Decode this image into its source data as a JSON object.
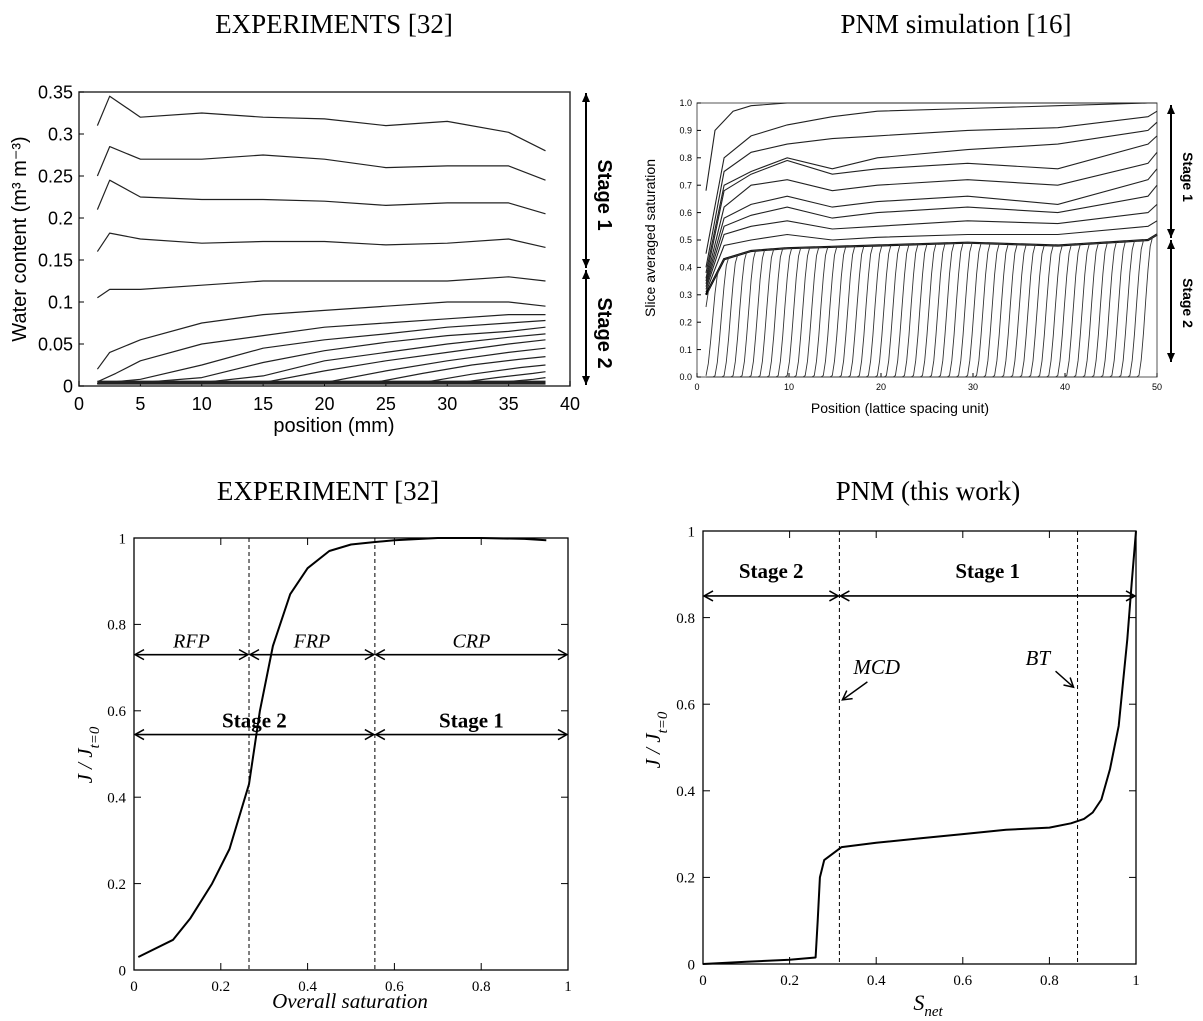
{
  "chart_data": [
    {
      "panel": "top-left",
      "type": "line",
      "title": "EXPERIMENTS [32]",
      "xlabel": "position (mm)",
      "ylabel": "Water content (m³ m⁻³)",
      "xlim": [
        0,
        40
      ],
      "ylim": [
        0,
        0.35
      ],
      "xticks": [
        "0",
        "5",
        "10",
        "15",
        "20",
        "25",
        "30",
        "35",
        "40"
      ],
      "yticks": [
        "0",
        "0.05",
        "0.1",
        "0.15",
        "0.2",
        "0.25",
        "0.3",
        "0.35"
      ],
      "annotations": [
        "Stage 1",
        "Stage 2"
      ],
      "series": [
        {
          "x": [
            1.5,
            2.5,
            5,
            10,
            15,
            20,
            25,
            30,
            35,
            38
          ],
          "values": [
            0.31,
            0.345,
            0.32,
            0.325,
            0.32,
            0.318,
            0.31,
            0.315,
            0.302,
            0.28
          ]
        },
        {
          "x": [
            1.5,
            2.5,
            5,
            10,
            15,
            20,
            25,
            30,
            35,
            38
          ],
          "values": [
            0.25,
            0.285,
            0.27,
            0.27,
            0.275,
            0.27,
            0.26,
            0.262,
            0.262,
            0.245
          ]
        },
        {
          "x": [
            1.5,
            2.5,
            5,
            10,
            15,
            20,
            25,
            30,
            35,
            38
          ],
          "values": [
            0.21,
            0.245,
            0.225,
            0.222,
            0.222,
            0.22,
            0.215,
            0.218,
            0.218,
            0.205
          ]
        },
        {
          "x": [
            1.5,
            2.5,
            5,
            10,
            15,
            20,
            25,
            30,
            35,
            38
          ],
          "values": [
            0.16,
            0.182,
            0.175,
            0.17,
            0.172,
            0.172,
            0.168,
            0.17,
            0.175,
            0.165
          ]
        },
        {
          "x": [
            1.5,
            2.5,
            5,
            10,
            15,
            20,
            25,
            30,
            35,
            38
          ],
          "values": [
            0.105,
            0.115,
            0.115,
            0.12,
            0.125,
            0.125,
            0.125,
            0.125,
            0.13,
            0.125
          ]
        },
        {
          "x": [
            1.5,
            2.5,
            5,
            10,
            15,
            20,
            25,
            30,
            35,
            38
          ],
          "values": [
            0.02,
            0.04,
            0.055,
            0.075,
            0.085,
            0.09,
            0.095,
            0.1,
            0.1,
            0.095
          ]
        },
        {
          "x": [
            1.5,
            3,
            5,
            10,
            15,
            20,
            25,
            30,
            35,
            38
          ],
          "values": [
            0.005,
            0.015,
            0.03,
            0.05,
            0.06,
            0.07,
            0.075,
            0.08,
            0.085,
            0.085
          ]
        },
        {
          "x": [
            1.5,
            5,
            10,
            15,
            20,
            25,
            30,
            35,
            38
          ],
          "values": [
            0.003,
            0.008,
            0.025,
            0.045,
            0.055,
            0.062,
            0.07,
            0.075,
            0.078
          ]
        },
        {
          "x": [
            1.5,
            5,
            10,
            15,
            20,
            25,
            30,
            35,
            38
          ],
          "values": [
            0.003,
            0.004,
            0.01,
            0.028,
            0.042,
            0.052,
            0.06,
            0.065,
            0.07
          ]
        },
        {
          "x": [
            1.5,
            10,
            15,
            20,
            25,
            30,
            35,
            38
          ],
          "values": [
            0.003,
            0.004,
            0.012,
            0.03,
            0.04,
            0.05,
            0.058,
            0.062
          ]
        },
        {
          "x": [
            1.5,
            15,
            20,
            25,
            30,
            35,
            38
          ],
          "values": [
            0.003,
            0.004,
            0.018,
            0.03,
            0.04,
            0.05,
            0.055
          ]
        },
        {
          "x": [
            1.5,
            20,
            25,
            30,
            35,
            38
          ],
          "values": [
            0.003,
            0.004,
            0.018,
            0.03,
            0.04,
            0.045
          ]
        },
        {
          "x": [
            1.5,
            24,
            28,
            32,
            36,
            38
          ],
          "values": [
            0.003,
            0.004,
            0.015,
            0.025,
            0.032,
            0.035
          ]
        },
        {
          "x": [
            1.5,
            28,
            32,
            36,
            38
          ],
          "values": [
            0.003,
            0.004,
            0.014,
            0.022,
            0.025
          ]
        },
        {
          "x": [
            1.5,
            31,
            34,
            37,
            38
          ],
          "values": [
            0.003,
            0.004,
            0.01,
            0.015,
            0.017
          ]
        },
        {
          "x": [
            1.5,
            34,
            37,
            38
          ],
          "values": [
            0.003,
            0.004,
            0.008,
            0.01
          ]
        },
        {
          "x": [
            1.5,
            38
          ],
          "values": [
            0.004,
            0.004
          ]
        }
      ]
    },
    {
      "panel": "top-right",
      "type": "line",
      "title": "PNM simulation [16]",
      "xlabel": "Position (lattice spacing unit)",
      "ylabel": "Slice averaged saturation",
      "xlim": [
        0,
        51
      ],
      "ylim": [
        0,
        1.0
      ],
      "xticks": [
        "0",
        "10",
        "20",
        "30",
        "40",
        "50"
      ],
      "yticks": [
        "0.0",
        "0.1",
        "0.2",
        "0.3",
        "0.4",
        "0.5",
        "0.6",
        "0.7",
        "0.8",
        "0.9",
        "1.0"
      ],
      "annotations": [
        "Stage 1",
        "Stage 2"
      ],
      "stage1_curves": [
        {
          "x": [
            1,
            2,
            4,
            6,
            10,
            20,
            30,
            40,
            50,
            51
          ],
          "values": [
            0.68,
            0.9,
            0.97,
            0.99,
            1.0,
            1.0,
            1.0,
            1.0,
            1.0,
            1.0
          ]
        },
        {
          "x": [
            1,
            3,
            6,
            10,
            15,
            20,
            30,
            40,
            50,
            51
          ],
          "values": [
            0.45,
            0.8,
            0.88,
            0.92,
            0.95,
            0.97,
            0.98,
            0.99,
            1.0,
            1.0
          ]
        },
        {
          "x": [
            1,
            3,
            6,
            10,
            15,
            20,
            30,
            40,
            50,
            51
          ],
          "values": [
            0.4,
            0.75,
            0.82,
            0.85,
            0.87,
            0.88,
            0.9,
            0.91,
            0.95,
            0.97
          ]
        },
        {
          "x": [
            1,
            3,
            6,
            10,
            15,
            20,
            30,
            40,
            50,
            51
          ],
          "values": [
            0.38,
            0.7,
            0.75,
            0.8,
            0.76,
            0.8,
            0.83,
            0.85,
            0.9,
            0.93
          ]
        },
        {
          "x": [
            1,
            3,
            6,
            10,
            15,
            20,
            30,
            40,
            50,
            51
          ],
          "values": [
            0.36,
            0.68,
            0.74,
            0.79,
            0.74,
            0.76,
            0.78,
            0.76,
            0.85,
            0.88
          ]
        },
        {
          "x": [
            1,
            3,
            6,
            10,
            15,
            20,
            30,
            40,
            50,
            51
          ],
          "values": [
            0.35,
            0.62,
            0.7,
            0.72,
            0.68,
            0.7,
            0.72,
            0.7,
            0.78,
            0.82
          ]
        },
        {
          "x": [
            1,
            3,
            6,
            10,
            15,
            20,
            30,
            40,
            50,
            51
          ],
          "values": [
            0.34,
            0.58,
            0.63,
            0.66,
            0.62,
            0.64,
            0.66,
            0.63,
            0.72,
            0.76
          ]
        },
        {
          "x": [
            1,
            3,
            6,
            10,
            15,
            20,
            30,
            40,
            50,
            51
          ],
          "values": [
            0.33,
            0.55,
            0.59,
            0.62,
            0.58,
            0.6,
            0.62,
            0.6,
            0.66,
            0.7
          ]
        },
        {
          "x": [
            1,
            3,
            6,
            10,
            15,
            20,
            30,
            40,
            50,
            51
          ],
          "values": [
            0.32,
            0.52,
            0.55,
            0.57,
            0.54,
            0.55,
            0.57,
            0.56,
            0.6,
            0.63
          ]
        },
        {
          "x": [
            1,
            3,
            6,
            10,
            15,
            20,
            30,
            40,
            50,
            51
          ],
          "values": [
            0.31,
            0.48,
            0.5,
            0.52,
            0.5,
            0.51,
            0.52,
            0.52,
            0.55,
            0.57
          ]
        }
      ],
      "front_base": {
        "x": [
          1,
          3,
          6,
          10,
          20,
          30,
          40,
          50,
          51
        ],
        "values": [
          0.3,
          0.43,
          0.46,
          0.47,
          0.48,
          0.49,
          0.48,
          0.5,
          0.52
        ]
      },
      "front_positions": [
        1.5,
        2.5,
        3.5,
        4.5,
        5.5,
        6.5,
        7.5,
        8.5,
        9.5,
        10.5,
        11.5,
        12.5,
        13.5,
        14.5,
        15.5,
        16.5,
        17.5,
        18.5,
        19.5,
        20.5,
        21.5,
        22.5,
        23.5,
        24.5,
        25.5,
        26.5,
        27.5,
        28.5,
        29.5,
        30.5,
        31.5,
        32.5,
        33.5,
        34.5,
        35.5,
        36.5,
        37.5,
        38.5,
        39.5,
        40.5,
        41.5,
        42.5,
        43.5,
        44.5,
        45.5,
        46.5,
        47.5,
        48.5,
        49.5,
        50.5
      ],
      "front_width": 1.6
    },
    {
      "panel": "bottom-left",
      "type": "line",
      "title": "EXPERIMENT [32]",
      "xlabel": "Overall saturation",
      "ylabel": "J / J",
      "ylabel_sub": "t=0",
      "xlim": [
        0,
        1
      ],
      "ylim": [
        0,
        1
      ],
      "xticks": [
        "0",
        "0.2",
        "0.4",
        "0.6",
        "0.8",
        "1"
      ],
      "yticks": [
        "0",
        "0.2",
        "0.4",
        "0.6",
        "0.8",
        "1"
      ],
      "vlines": [
        0.265,
        0.555
      ],
      "regions_top": [
        "RFP",
        "FRP",
        "CRP"
      ],
      "regions_top_y": 0.73,
      "regions_bottom": [
        "Stage 2",
        "Stage 1"
      ],
      "regions_bottom_y": 0.545,
      "series": [
        {
          "x": [
            0.01,
            0.09,
            0.13,
            0.18,
            0.22,
            0.265,
            0.29,
            0.32,
            0.36,
            0.4,
            0.45,
            0.5,
            0.55,
            0.6,
            0.7,
            0.8,
            0.9,
            0.95
          ],
          "values": [
            0.03,
            0.07,
            0.12,
            0.2,
            0.28,
            0.43,
            0.6,
            0.75,
            0.87,
            0.93,
            0.97,
            0.985,
            0.99,
            0.995,
            1.0,
            1.0,
            0.998,
            0.995
          ]
        }
      ]
    },
    {
      "panel": "bottom-right",
      "type": "line",
      "title": "PNM (this work)",
      "xlabel": "S",
      "xlabel_sub": "net",
      "ylabel": "J / J",
      "ylabel_sub": "t=0",
      "xlim": [
        0,
        1
      ],
      "ylim": [
        0,
        1
      ],
      "xticks": [
        "0",
        "0.2",
        "0.4",
        "0.6",
        "0.8",
        "1"
      ],
      "yticks": [
        "0",
        "0.2",
        "0.4",
        "0.6",
        "0.8",
        "1"
      ],
      "vlines": [
        0.315,
        0.865
      ],
      "regions": [
        "Stage 2",
        "Stage 1"
      ],
      "regions_arrow_y": 0.85,
      "annotations": [
        "MCD",
        "BT"
      ],
      "series": [
        {
          "x": [
            0,
            0.1,
            0.2,
            0.26,
            0.265,
            0.27,
            0.28,
            0.3,
            0.32,
            0.4,
            0.5,
            0.6,
            0.7,
            0.8,
            0.85,
            0.88,
            0.9,
            0.92,
            0.94,
            0.96,
            0.97,
            0.98,
            0.99,
            1.0
          ],
          "values": [
            0.0,
            0.005,
            0.01,
            0.015,
            0.1,
            0.2,
            0.24,
            0.255,
            0.27,
            0.28,
            0.29,
            0.3,
            0.31,
            0.315,
            0.325,
            0.335,
            0.35,
            0.38,
            0.45,
            0.55,
            0.65,
            0.75,
            0.88,
            1.0
          ]
        }
      ]
    }
  ]
}
